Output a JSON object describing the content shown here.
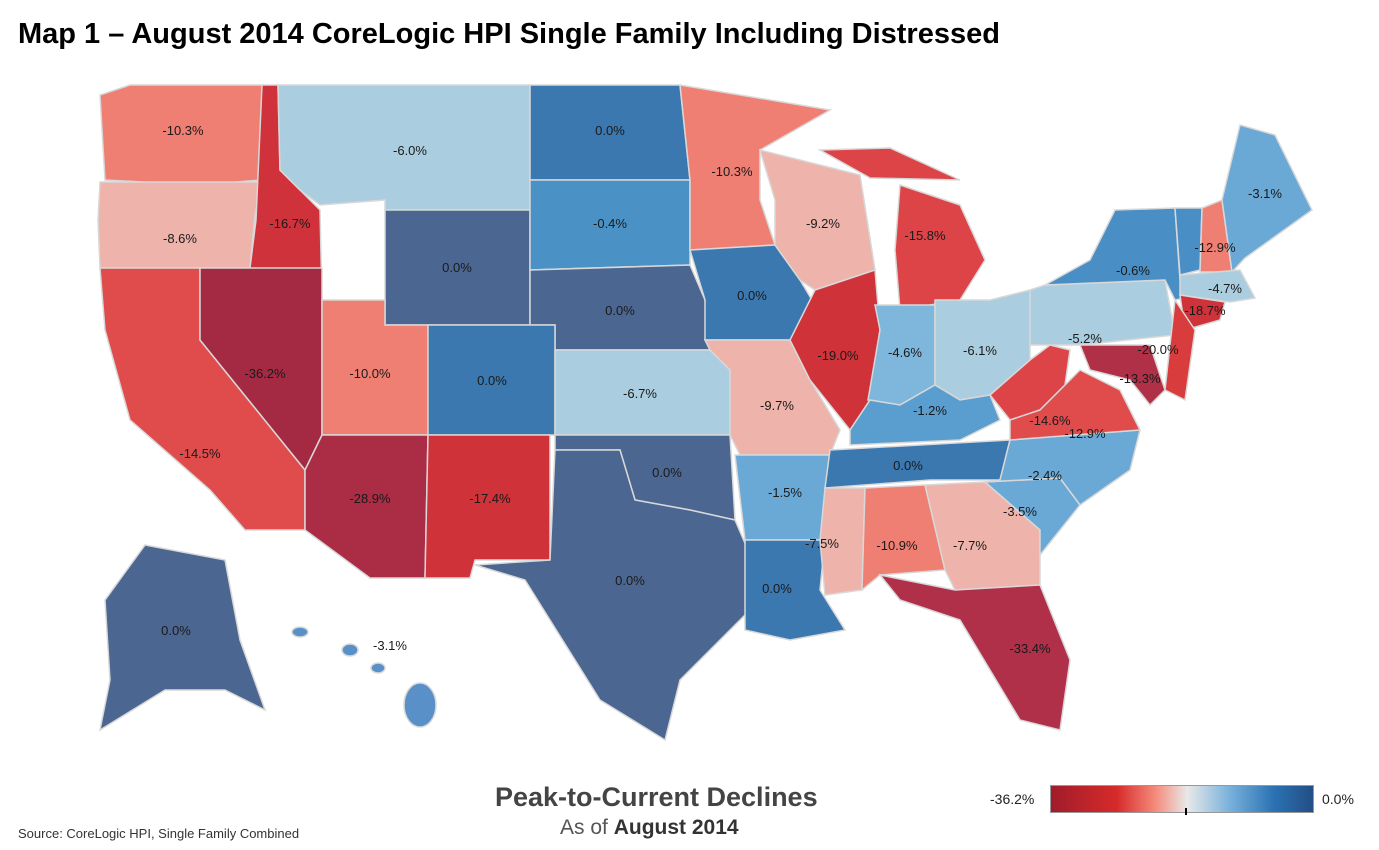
{
  "title": "Map 1 – August 2014 CoreLogic HPI Single Family Including Distressed",
  "legend": {
    "title": "Peak-to-Current Declines",
    "subtitle_prefix": "As of",
    "subtitle_date": "August 2014",
    "min_label": "-36.2%",
    "max_label": "0.0%"
  },
  "source": "Source: CoreLogic HPI, Single Family Combined",
  "states": [
    {
      "id": "WA",
      "label": "-10.3%",
      "fill": "#ee7f72"
    },
    {
      "id": "OR",
      "label": "-8.6%",
      "fill": "#eeb3aa"
    },
    {
      "id": "ID",
      "label": "-16.7%",
      "fill": "#cf323b"
    },
    {
      "id": "MT",
      "label": "-6.0%",
      "fill": "#aacde0"
    },
    {
      "id": "WY",
      "label": "0.0%",
      "fill": "#4b6690"
    },
    {
      "id": "ND",
      "label": "0.0%",
      "fill": "#3b78b0"
    },
    {
      "id": "SD",
      "label": "-0.4%",
      "fill": "#4a92c6"
    },
    {
      "id": "NE",
      "label": "0.0%",
      "fill": "#4b6690"
    },
    {
      "id": "CA",
      "label": "-14.5%",
      "fill": "#e04c4c"
    },
    {
      "id": "NV",
      "label": "-36.2%",
      "fill": "#a42a44"
    },
    {
      "id": "UT",
      "label": "-10.0%",
      "fill": "#ee7f72"
    },
    {
      "id": "CO",
      "label": "0.0%",
      "fill": "#3b78b0"
    },
    {
      "id": "AZ",
      "label": "-28.9%",
      "fill": "#ab2c45"
    },
    {
      "id": "NM",
      "label": "-17.4%",
      "fill": "#cf3238"
    },
    {
      "id": "KS",
      "label": "-6.7%",
      "fill": "#aacde0"
    },
    {
      "id": "OK",
      "label": "0.0%",
      "fill": "#4b6690"
    },
    {
      "id": "TX",
      "label": "0.0%",
      "fill": "#4b6690"
    },
    {
      "id": "MN",
      "label": "-10.3%",
      "fill": "#ee7f72"
    },
    {
      "id": "IA",
      "label": "0.0%",
      "fill": "#3b78b0"
    },
    {
      "id": "MO",
      "label": "-9.7%",
      "fill": "#eeb3aa"
    },
    {
      "id": "AR",
      "label": "-1.5%",
      "fill": "#6aa8d6"
    },
    {
      "id": "LA",
      "label": "0.0%",
      "fill": "#3b78b0"
    },
    {
      "id": "WI",
      "label": "-9.2%",
      "fill": "#eeb3aa"
    },
    {
      "id": "IL",
      "label": "-19.0%",
      "fill": "#cf3238"
    },
    {
      "id": "MI",
      "label": "-15.8%",
      "fill": "#dc4448"
    },
    {
      "id": "IN",
      "label": "-4.6%",
      "fill": "#7fb6dc"
    },
    {
      "id": "OH",
      "label": "-6.1%",
      "fill": "#aacde0"
    },
    {
      "id": "KY",
      "label": "-1.2%",
      "fill": "#5a9ed0"
    },
    {
      "id": "TN",
      "label": "0.0%",
      "fill": "#3b78b0"
    },
    {
      "id": "MS",
      "label": "-7.5%",
      "fill": "#eeb3aa"
    },
    {
      "id": "AL",
      "label": "-10.9%",
      "fill": "#ee7f72"
    },
    {
      "id": "GA",
      "label": "-7.7%",
      "fill": "#eeb3aa"
    },
    {
      "id": "FL",
      "label": "-33.4%",
      "fill": "#b0304a"
    },
    {
      "id": "SC",
      "label": "-3.5%",
      "fill": "#6aa8d6"
    },
    {
      "id": "NC",
      "label": "-2.4%",
      "fill": "#6aa8d6"
    },
    {
      "id": "WV",
      "label": "-14.6%",
      "fill": "#dc4448"
    },
    {
      "id": "VA",
      "label": "-12.9%",
      "fill": "#e04c4c"
    },
    {
      "id": "PA",
      "label": "-5.2%",
      "fill": "#aacde0"
    },
    {
      "id": "NY",
      "label": "-0.6%",
      "fill": "#4a8ec6"
    },
    {
      "id": "VT",
      "label": "",
      "fill": "#4a8ec6"
    },
    {
      "id": "NH",
      "label": "-12.9%",
      "fill": "#ee7f72"
    },
    {
      "id": "ME",
      "label": "-3.1%",
      "fill": "#6aa8d6"
    },
    {
      "id": "MA",
      "label": "-4.7%",
      "fill": "#aacde0"
    },
    {
      "id": "CT",
      "label": "-18.7%",
      "fill": "#cf3238"
    },
    {
      "id": "NJ",
      "label": "-20.0%",
      "fill": "#d83c3c"
    },
    {
      "id": "MD",
      "label": "-13.3%",
      "fill": "#b03048"
    },
    {
      "id": "AK",
      "label": "0.0%",
      "fill": "#4b6690"
    },
    {
      "id": "HI",
      "label": "-3.1%",
      "fill": "#5a90c8"
    }
  ]
}
